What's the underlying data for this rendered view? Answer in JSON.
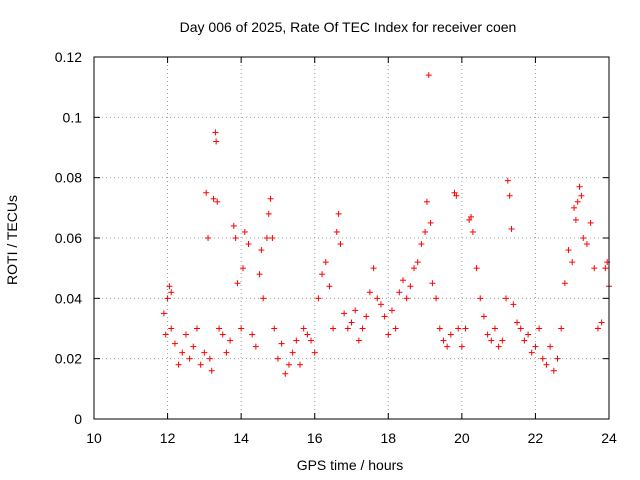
{
  "chart_data": {
    "type": "scatter",
    "title": "Day 006 of 2025, Rate Of TEC Index for receiver coen",
    "xlabel": "GPS time / hours",
    "ylabel": "ROTI / TECUs",
    "xlim": [
      10,
      24
    ],
    "ylim": [
      0,
      0.12
    ],
    "x_ticks": [
      10,
      12,
      14,
      16,
      18,
      20,
      22,
      24
    ],
    "x_tick_labels": [
      "10",
      "12",
      "14",
      "16",
      "18",
      "20",
      "22",
      "24"
    ],
    "y_ticks": [
      0,
      0.02,
      0.04,
      0.06,
      0.08,
      0.1,
      0.12
    ],
    "y_tick_labels": [
      "0",
      "0.02",
      "0.04",
      "0.06",
      "0.08",
      "0.1",
      "0.12"
    ],
    "grid": true,
    "marker": "+",
    "color": "#ff0000",
    "series": [
      {
        "name": "ROTI",
        "points": [
          [
            11.9,
            0.035
          ],
          [
            11.95,
            0.028
          ],
          [
            12.0,
            0.04
          ],
          [
            12.05,
            0.044
          ],
          [
            12.1,
            0.042
          ],
          [
            12.1,
            0.03
          ],
          [
            12.2,
            0.025
          ],
          [
            12.3,
            0.018
          ],
          [
            12.4,
            0.022
          ],
          [
            12.5,
            0.028
          ],
          [
            12.6,
            0.02
          ],
          [
            12.7,
            0.024
          ],
          [
            12.8,
            0.03
          ],
          [
            12.9,
            0.018
          ],
          [
            13.0,
            0.022
          ],
          [
            13.05,
            0.075
          ],
          [
            13.1,
            0.06
          ],
          [
            13.15,
            0.02
          ],
          [
            13.2,
            0.016
          ],
          [
            13.25,
            0.073
          ],
          [
            13.3,
            0.095
          ],
          [
            13.32,
            0.092
          ],
          [
            13.35,
            0.072
          ],
          [
            13.4,
            0.03
          ],
          [
            13.5,
            0.028
          ],
          [
            13.6,
            0.022
          ],
          [
            13.7,
            0.026
          ],
          [
            13.8,
            0.064
          ],
          [
            13.85,
            0.06
          ],
          [
            13.9,
            0.045
          ],
          [
            14.0,
            0.03
          ],
          [
            14.05,
            0.05
          ],
          [
            14.1,
            0.062
          ],
          [
            14.2,
            0.058
          ],
          [
            14.3,
            0.028
          ],
          [
            14.4,
            0.024
          ],
          [
            14.5,
            0.048
          ],
          [
            14.55,
            0.056
          ],
          [
            14.6,
            0.04
          ],
          [
            14.7,
            0.06
          ],
          [
            14.75,
            0.068
          ],
          [
            14.8,
            0.073
          ],
          [
            14.85,
            0.06
          ],
          [
            14.9,
            0.03
          ],
          [
            15.0,
            0.02
          ],
          [
            15.1,
            0.025
          ],
          [
            15.2,
            0.015
          ],
          [
            15.3,
            0.018
          ],
          [
            15.4,
            0.022
          ],
          [
            15.5,
            0.026
          ],
          [
            15.6,
            0.018
          ],
          [
            15.7,
            0.03
          ],
          [
            15.8,
            0.028
          ],
          [
            15.9,
            0.026
          ],
          [
            16.0,
            0.022
          ],
          [
            16.1,
            0.04
          ],
          [
            16.2,
            0.048
          ],
          [
            16.3,
            0.052
          ],
          [
            16.4,
            0.044
          ],
          [
            16.5,
            0.03
          ],
          [
            16.6,
            0.062
          ],
          [
            16.65,
            0.068
          ],
          [
            16.7,
            0.058
          ],
          [
            16.8,
            0.035
          ],
          [
            16.9,
            0.03
          ],
          [
            17.0,
            0.032
          ],
          [
            17.1,
            0.036
          ],
          [
            17.2,
            0.026
          ],
          [
            17.3,
            0.03
          ],
          [
            17.4,
            0.034
          ],
          [
            17.5,
            0.042
          ],
          [
            17.6,
            0.05
          ],
          [
            17.7,
            0.04
          ],
          [
            17.8,
            0.038
          ],
          [
            17.9,
            0.034
          ],
          [
            18.0,
            0.028
          ],
          [
            18.1,
            0.036
          ],
          [
            18.2,
            0.03
          ],
          [
            18.3,
            0.042
          ],
          [
            18.4,
            0.046
          ],
          [
            18.5,
            0.04
          ],
          [
            18.6,
            0.044
          ],
          [
            18.7,
            0.05
          ],
          [
            18.8,
            0.052
          ],
          [
            18.9,
            0.058
          ],
          [
            19.0,
            0.062
          ],
          [
            19.05,
            0.072
          ],
          [
            19.1,
            0.114
          ],
          [
            19.15,
            0.065
          ],
          [
            19.2,
            0.045
          ],
          [
            19.3,
            0.04
          ],
          [
            19.4,
            0.03
          ],
          [
            19.5,
            0.026
          ],
          [
            19.6,
            0.024
          ],
          [
            19.7,
            0.028
          ],
          [
            19.8,
            0.075
          ],
          [
            19.85,
            0.074
          ],
          [
            19.9,
            0.03
          ],
          [
            20.0,
            0.024
          ],
          [
            20.1,
            0.03
          ],
          [
            20.2,
            0.066
          ],
          [
            20.25,
            0.067
          ],
          [
            20.3,
            0.062
          ],
          [
            20.4,
            0.05
          ],
          [
            20.5,
            0.04
          ],
          [
            20.6,
            0.034
          ],
          [
            20.7,
            0.028
          ],
          [
            20.8,
            0.026
          ],
          [
            20.9,
            0.03
          ],
          [
            21.0,
            0.024
          ],
          [
            21.1,
            0.026
          ],
          [
            21.2,
            0.04
          ],
          [
            21.25,
            0.079
          ],
          [
            21.3,
            0.074
          ],
          [
            21.35,
            0.063
          ],
          [
            21.4,
            0.038
          ],
          [
            21.5,
            0.032
          ],
          [
            21.6,
            0.03
          ],
          [
            21.7,
            0.026
          ],
          [
            21.8,
            0.028
          ],
          [
            21.9,
            0.022
          ],
          [
            22.0,
            0.024
          ],
          [
            22.1,
            0.03
          ],
          [
            22.2,
            0.02
          ],
          [
            22.3,
            0.018
          ],
          [
            22.4,
            0.024
          ],
          [
            22.5,
            0.016
          ],
          [
            22.6,
            0.02
          ],
          [
            22.7,
            0.03
          ],
          [
            22.8,
            0.045
          ],
          [
            22.9,
            0.056
          ],
          [
            23.0,
            0.052
          ],
          [
            23.05,
            0.07
          ],
          [
            23.1,
            0.066
          ],
          [
            23.15,
            0.072
          ],
          [
            23.2,
            0.077
          ],
          [
            23.25,
            0.074
          ],
          [
            23.3,
            0.06
          ],
          [
            23.4,
            0.058
          ],
          [
            23.5,
            0.065
          ],
          [
            23.6,
            0.05
          ],
          [
            23.7,
            0.03
          ],
          [
            23.8,
            0.032
          ],
          [
            23.9,
            0.05
          ],
          [
            23.95,
            0.052
          ],
          [
            24.0,
            0.044
          ]
        ]
      }
    ]
  }
}
